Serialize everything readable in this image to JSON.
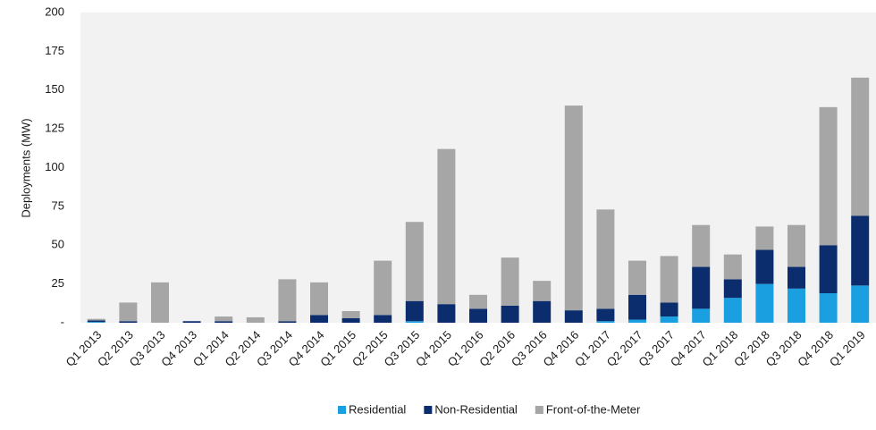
{
  "chart_data": {
    "type": "stacked-bar",
    "y_label": "Deployments (MW)",
    "categories": [
      "Q1 2013",
      "Q2 2013",
      "Q3 2013",
      "Q4 2013",
      "Q1 2014",
      "Q2 2014",
      "Q3 2014",
      "Q4 2014",
      "Q1 2015",
      "Q2 2015",
      "Q3 2015",
      "Q4 2015",
      "Q1 2016",
      "Q2 2016",
      "Q3 2016",
      "Q4 2016",
      "Q1 2017",
      "Q2 2017",
      "Q3 2017",
      "Q4 2017",
      "Q1 2018",
      "Q2 2018",
      "Q3 2018",
      "Q4 2018",
      "Q1 2019"
    ],
    "series": [
      {
        "name": "Residential",
        "color": "#1aa0e0",
        "values": [
          0.5,
          0,
          0,
          0,
          0,
          0,
          0,
          0,
          0,
          0,
          1,
          0,
          0,
          0,
          0,
          0,
          1,
          2,
          4,
          9,
          16,
          25,
          22,
          19,
          24
        ]
      },
      {
        "name": "Non-Residential",
        "color": "#0b2d6e",
        "values": [
          1,
          1,
          0,
          1,
          1,
          0,
          1,
          5,
          3,
          5,
          13,
          12,
          9,
          11,
          14,
          8,
          8,
          16,
          9,
          27,
          12,
          22,
          14,
          31,
          45
        ]
      },
      {
        "name": "Front-of-the-Meter",
        "color": "#a6a6a6",
        "values": [
          1,
          12,
          26,
          0,
          3,
          3.5,
          27,
          21,
          4.5,
          35,
          51,
          100,
          9,
          31,
          13,
          132,
          64,
          22,
          30,
          27,
          16,
          15,
          27,
          89,
          89
        ]
      }
    ],
    "ylim": [
      0,
      200
    ],
    "yticks": [
      {
        "value": 0,
        "label": "-"
      },
      25,
      50,
      75,
      100,
      125,
      150,
      175,
      200
    ],
    "grid": false,
    "legend": "bottom"
  }
}
